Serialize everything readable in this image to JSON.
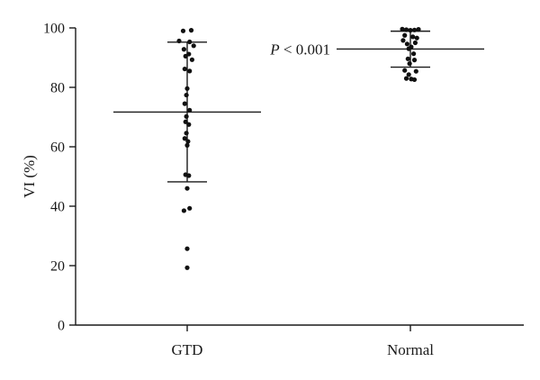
{
  "chart_data": {
    "type": "scatter",
    "ylabel": "VI (%)",
    "ylim": [
      0,
      100
    ],
    "yticks": [
      0,
      20,
      40,
      60,
      80,
      100
    ],
    "categories": [
      "GTD",
      "Normal"
    ],
    "grid": false,
    "groups": [
      {
        "category": "GTD",
        "mean": 71.7,
        "sd_upper": 95.2,
        "sd_lower": 48.2,
        "points": [
          {
            "offset": -0.5,
            "y": 99.0
          },
          {
            "offset": 0.5,
            "y": 99.2
          },
          {
            "offset": -1,
            "y": 95.6
          },
          {
            "offset": 0.3,
            "y": 95.3
          },
          {
            "offset": 0.8,
            "y": 94.0
          },
          {
            "offset": -0.4,
            "y": 92.8
          },
          {
            "offset": 0.2,
            "y": 91.2
          },
          {
            "offset": -0.2,
            "y": 90.5
          },
          {
            "offset": 0.6,
            "y": 89.3
          },
          {
            "offset": -0.3,
            "y": 86.2
          },
          {
            "offset": 0.3,
            "y": 85.5
          },
          {
            "offset": 0,
            "y": 79.6
          },
          {
            "offset": -0.1,
            "y": 77.4
          },
          {
            "offset": -0.3,
            "y": 74.5
          },
          {
            "offset": 0.3,
            "y": 72.3
          },
          {
            "offset": -0.1,
            "y": 70.2
          },
          {
            "offset": -0.2,
            "y": 68.4
          },
          {
            "offset": 0.2,
            "y": 67.5
          },
          {
            "offset": -0.1,
            "y": 64.6
          },
          {
            "offset": -0.3,
            "y": 62.8
          },
          {
            "offset": 0.1,
            "y": 61.8
          },
          {
            "offset": 0,
            "y": 60.5
          },
          {
            "offset": -0.2,
            "y": 50.6
          },
          {
            "offset": 0.2,
            "y": 50.3
          },
          {
            "offset": 0,
            "y": 46.0
          },
          {
            "offset": -0.4,
            "y": 38.5
          },
          {
            "offset": 0.3,
            "y": 39.3
          },
          {
            "offset": 0,
            "y": 25.7
          },
          {
            "offset": 0,
            "y": 19.3
          }
        ]
      },
      {
        "category": "Normal",
        "mean": 92.9,
        "sd_upper": 98.9,
        "sd_lower": 86.8,
        "points": [
          {
            "offset": -1,
            "y": 99.6
          },
          {
            "offset": -0.5,
            "y": 99.4
          },
          {
            "offset": 0,
            "y": 99.2
          },
          {
            "offset": 0.5,
            "y": 99.3
          },
          {
            "offset": 1,
            "y": 99.5
          },
          {
            "offset": -0.7,
            "y": 97.5
          },
          {
            "offset": 0.3,
            "y": 97.0
          },
          {
            "offset": 0.8,
            "y": 96.6
          },
          {
            "offset": -0.9,
            "y": 95.8
          },
          {
            "offset": 0.6,
            "y": 95.0
          },
          {
            "offset": -0.4,
            "y": 94.6
          },
          {
            "offset": 0.1,
            "y": 93.6
          },
          {
            "offset": -0.2,
            "y": 93.0
          },
          {
            "offset": 0.4,
            "y": 91.3
          },
          {
            "offset": -0.3,
            "y": 89.6
          },
          {
            "offset": 0.5,
            "y": 89.2
          },
          {
            "offset": -0.1,
            "y": 88.0
          },
          {
            "offset": -0.7,
            "y": 85.7
          },
          {
            "offset": 0.7,
            "y": 85.4
          },
          {
            "offset": -0.2,
            "y": 84.3
          },
          {
            "offset": -0.5,
            "y": 83.0
          },
          {
            "offset": 0.1,
            "y": 82.8
          },
          {
            "offset": 0.5,
            "y": 82.6
          }
        ]
      }
    ],
    "annotations": [
      {
        "text": "P < 0.001",
        "category": "Normal"
      }
    ]
  }
}
